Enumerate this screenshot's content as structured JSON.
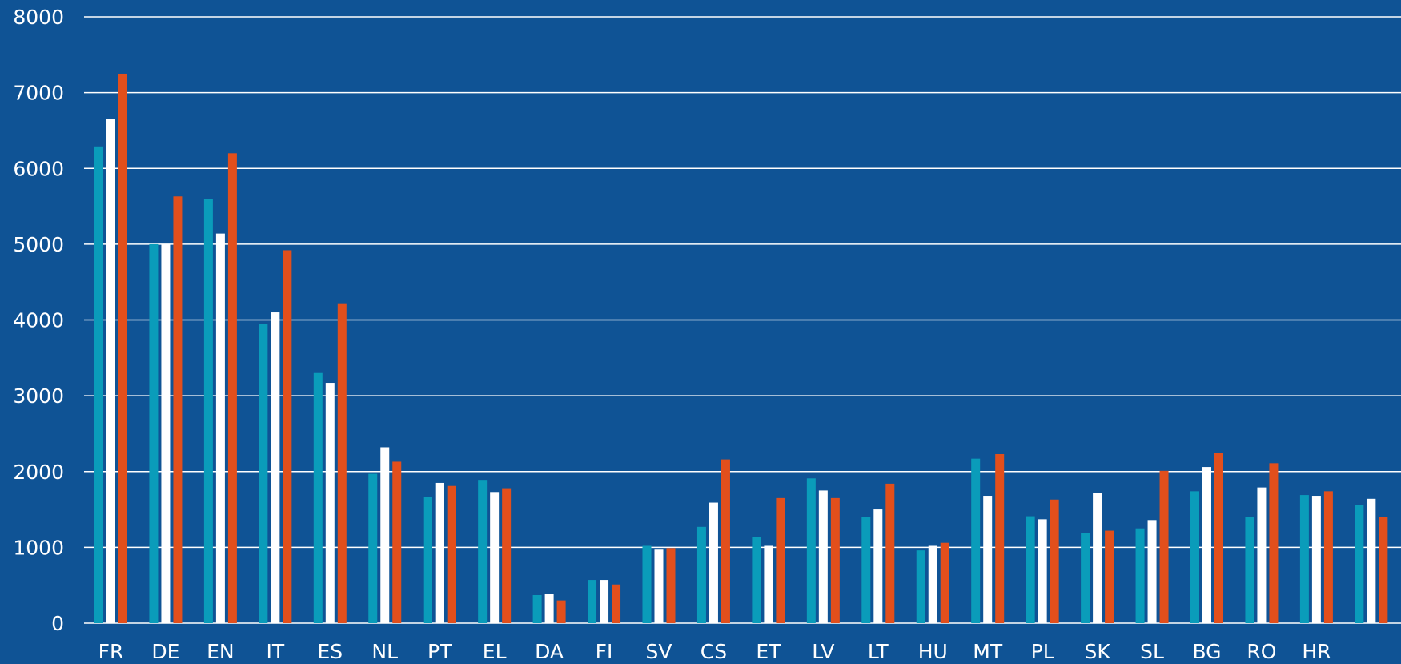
{
  "chart_data": {
    "type": "bar",
    "title": "",
    "xlabel": "",
    "ylabel": "",
    "ylim": [
      0,
      8000
    ],
    "yticks": [
      0,
      1000,
      2000,
      3000,
      4000,
      5000,
      6000,
      7000,
      8000
    ],
    "grid": true,
    "legend": "none",
    "background": "#0f5395",
    "categories": [
      "FR",
      "DE",
      "EN",
      "IT",
      "ES",
      "NL",
      "PT",
      "EL",
      "DA",
      "FI",
      "SV",
      "CS",
      "ET",
      "LV",
      "LT",
      "HU",
      "MT",
      "PL",
      "SK",
      "SL",
      "BG",
      "RO",
      "HR",
      ""
    ],
    "series": [
      {
        "color": "#0a9cba",
        "values": [
          6290,
          5000,
          5600,
          3950,
          3300,
          1970,
          1670,
          1890,
          370,
          570,
          1020,
          1270,
          1140,
          1910,
          1400,
          960,
          2170,
          1410,
          1190,
          1250,
          1740,
          1400,
          1690,
          1560
        ]
      },
      {
        "color": "#ffffff",
        "values": [
          6650,
          5000,
          5140,
          4100,
          3170,
          2320,
          1850,
          1730,
          390,
          570,
          970,
          1590,
          1020,
          1750,
          1500,
          1020,
          1680,
          1370,
          1720,
          1360,
          2060,
          1790,
          1680,
          1640
        ]
      },
      {
        "color": "#e24f1c",
        "values": [
          7250,
          5630,
          6200,
          4920,
          4220,
          2130,
          1810,
          1780,
          300,
          510,
          990,
          2160,
          1650,
          1650,
          1840,
          1060,
          2230,
          1630,
          1220,
          2010,
          2250,
          2110,
          1740,
          1400
        ]
      }
    ]
  }
}
